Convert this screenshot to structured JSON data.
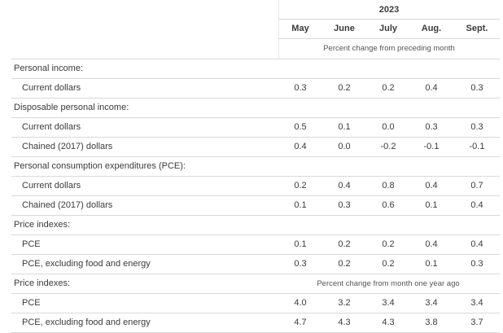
{
  "header": {
    "year": "2023",
    "months": [
      "May",
      "June",
      "July",
      "Aug.",
      "Sept."
    ],
    "note": "Percent change from preceding month"
  },
  "rows": [
    {
      "type": "section",
      "label": "Personal income:"
    },
    {
      "type": "data",
      "label": "Current dollars",
      "values": [
        "0.3",
        "0.2",
        "0.2",
        "0.4",
        "0.3"
      ]
    },
    {
      "type": "section",
      "label": "Disposable personal income:"
    },
    {
      "type": "data",
      "label": "Current dollars",
      "values": [
        "0.5",
        "0.1",
        "0.0",
        "0.3",
        "0.3"
      ]
    },
    {
      "type": "data",
      "label": "Chained (2017) dollars",
      "values": [
        "0.4",
        "0.0",
        "-0.2",
        "-0.1",
        "-0.1"
      ]
    },
    {
      "type": "section",
      "label": "Personal consumption expenditures (PCE):"
    },
    {
      "type": "data",
      "label": "Current dollars",
      "values": [
        "0.2",
        "0.4",
        "0.8",
        "0.4",
        "0.7"
      ]
    },
    {
      "type": "data",
      "label": "Chained (2017) dollars",
      "values": [
        "0.1",
        "0.3",
        "0.6",
        "0.1",
        "0.4"
      ]
    },
    {
      "type": "section",
      "label": "Price indexes:"
    },
    {
      "type": "data",
      "label": "PCE",
      "values": [
        "0.1",
        "0.2",
        "0.2",
        "0.4",
        "0.4"
      ]
    },
    {
      "type": "data",
      "label": "PCE, excluding food and energy",
      "values": [
        "0.3",
        "0.2",
        "0.2",
        "0.1",
        "0.3"
      ]
    },
    {
      "type": "section",
      "label": "Price indexes:",
      "note": "Percent change from month one year ago"
    },
    {
      "type": "data",
      "label": "PCE",
      "values": [
        "4.0",
        "3.2",
        "3.4",
        "3.4",
        "3.4"
      ]
    },
    {
      "type": "data",
      "label": "PCE, excluding food and energy",
      "values": [
        "4.7",
        "4.3",
        "4.3",
        "3.8",
        "3.7"
      ]
    }
  ]
}
